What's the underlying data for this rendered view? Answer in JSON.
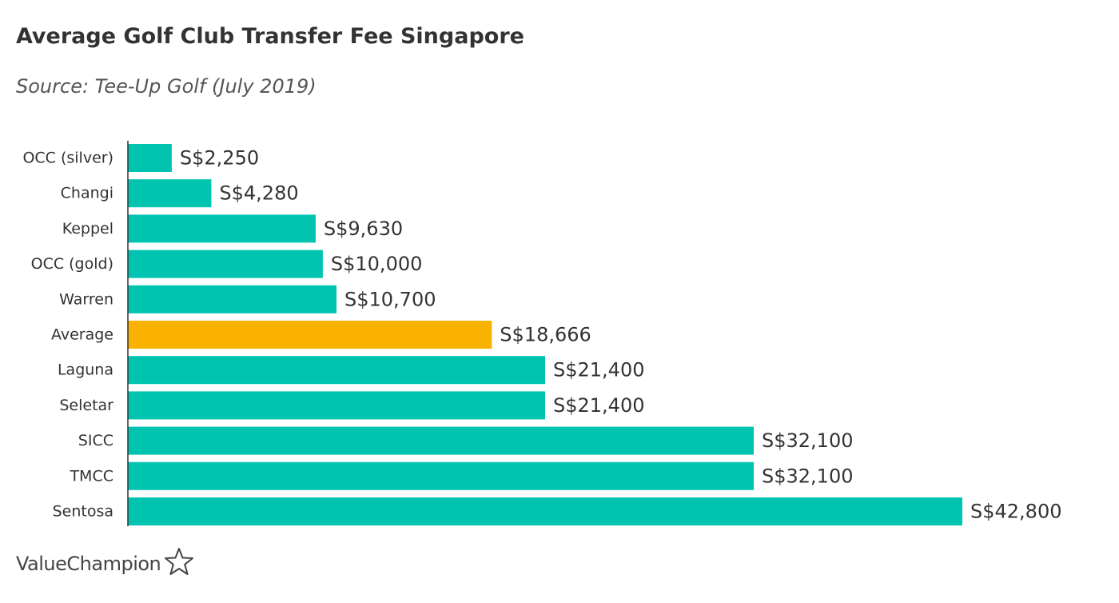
{
  "chart_data": {
    "type": "bar",
    "orientation": "horizontal",
    "title": "Average Golf Club Transfer Fee Singapore",
    "subtitle": "Source: Tee-Up Golf (July 2019)",
    "xlabel": "",
    "ylabel": "",
    "xlim": [
      0,
      42800
    ],
    "grid": false,
    "categories": [
      "OCC (silver)",
      "Changi",
      "Keppel",
      "OCC (gold)",
      "Warren",
      "Average",
      "Laguna",
      "Seletar",
      "SICC",
      "TMCC",
      "Sentosa"
    ],
    "values": [
      2250,
      4280,
      9630,
      10000,
      10700,
      18666,
      21400,
      21400,
      32100,
      32100,
      42800
    ],
    "value_labels": [
      "S$2,250",
      "S$4,280",
      "S$9,630",
      "S$10,000",
      "S$10,700",
      "S$18,666",
      "S$21,400",
      "S$21,400",
      "S$32,100",
      "S$32,100",
      "S$42,800"
    ],
    "colors": {
      "default": "#00c4b0",
      "highlight": "#f9b200",
      "highlight_category": "Average",
      "axis": "#333333"
    }
  },
  "branding": {
    "logo_text": "ValueChampion",
    "logo_icon": "star-outline-icon"
  }
}
